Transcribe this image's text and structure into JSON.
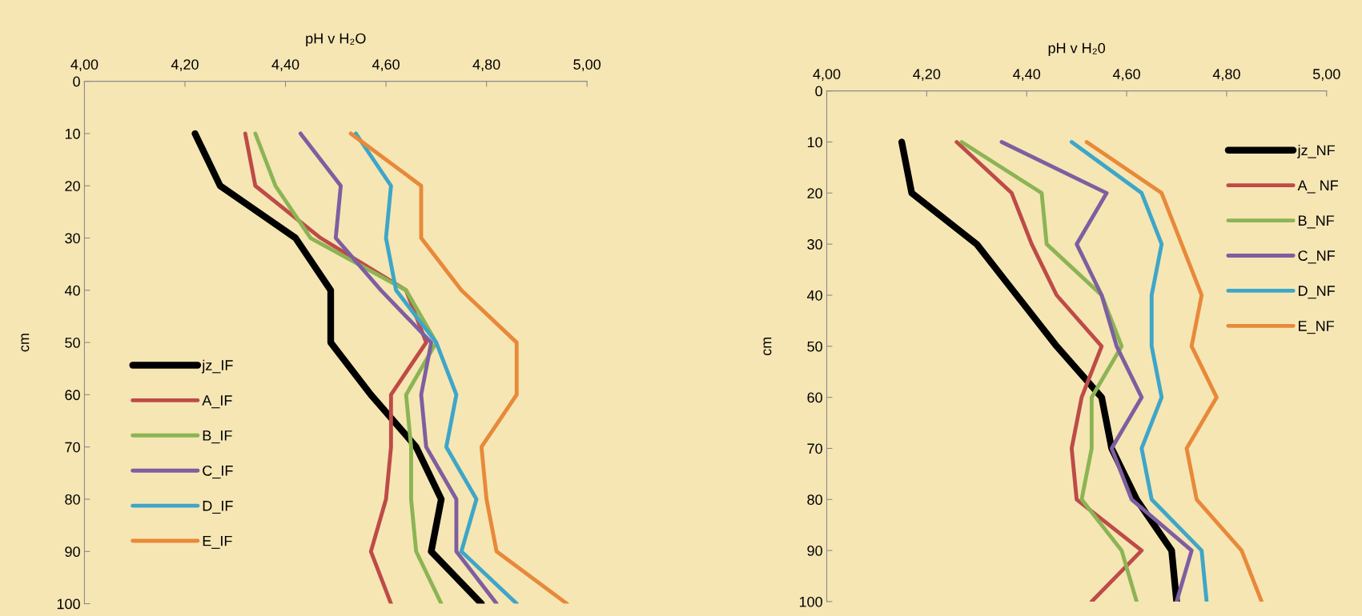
{
  "chart_data": [
    {
      "type": "line",
      "xlabel": "pH v H₂O",
      "ylabel": "cm",
      "xlim": [
        4.0,
        5.0
      ],
      "ylim": [
        100,
        0
      ],
      "xticks": [
        {
          "value": 4.0,
          "label": "4,00"
        },
        {
          "value": 4.2,
          "label": "4,20"
        },
        {
          "value": 4.4,
          "label": "4,40"
        },
        {
          "value": 4.6,
          "label": "4,60"
        },
        {
          "value": 4.8,
          "label": "4,80"
        },
        {
          "value": 5.0,
          "label": "5,00"
        }
      ],
      "yticks": [
        0,
        10,
        20,
        30,
        40,
        50,
        60,
        70,
        80,
        90,
        100
      ],
      "grid": false,
      "legend": "bottom left",
      "marker": "none",
      "line_style": "solid",
      "series": [
        {
          "name": "jz_IF",
          "color": "#000000",
          "x": [
            4.22,
            4.27,
            4.42,
            4.49,
            4.49,
            4.57,
            4.66,
            4.71,
            4.69,
            4.79
          ],
          "values": [
            10,
            20,
            30,
            40,
            50,
            60,
            70,
            80,
            90,
            100
          ]
        },
        {
          "name": "A_IF",
          "color": "#be4b48",
          "x": [
            4.32,
            4.34,
            4.47,
            4.64,
            4.68,
            4.61,
            4.61,
            4.6,
            4.57,
            4.61
          ],
          "values": [
            10,
            20,
            30,
            40,
            50,
            60,
            70,
            80,
            90,
            100
          ]
        },
        {
          "name": "B_IF",
          "color": "#8cb454",
          "x": [
            4.34,
            4.38,
            4.45,
            4.64,
            4.7,
            4.64,
            4.65,
            4.65,
            4.66,
            4.71
          ],
          "values": [
            10,
            20,
            30,
            40,
            50,
            60,
            70,
            80,
            90,
            100
          ]
        },
        {
          "name": "C_IF",
          "color": "#7d5fa0",
          "x": [
            4.43,
            4.51,
            4.5,
            4.59,
            4.69,
            4.67,
            4.68,
            4.74,
            4.74,
            4.82
          ],
          "values": [
            10,
            20,
            30,
            40,
            50,
            60,
            70,
            80,
            90,
            100
          ]
        },
        {
          "name": "D_IF",
          "color": "#3ea6c8",
          "x": [
            4.54,
            4.61,
            4.6,
            4.62,
            4.7,
            4.74,
            4.72,
            4.78,
            4.75,
            4.86
          ],
          "values": [
            10,
            20,
            30,
            40,
            50,
            60,
            70,
            80,
            90,
            100
          ]
        },
        {
          "name": "E_IF",
          "color": "#e8893a",
          "x": [
            4.53,
            4.67,
            4.67,
            4.75,
            4.86,
            4.86,
            4.79,
            4.8,
            4.82,
            4.96
          ],
          "values": [
            10,
            20,
            30,
            40,
            50,
            60,
            70,
            80,
            90,
            100
          ]
        }
      ]
    },
    {
      "type": "line",
      "xlabel": "pH v H₂0",
      "ylabel": "cm",
      "xlim": [
        4.0,
        5.0
      ],
      "ylim": [
        100,
        0
      ],
      "xticks": [
        {
          "value": 4.0,
          "label": "4,00"
        },
        {
          "value": 4.2,
          "label": "4,20"
        },
        {
          "value": 4.4,
          "label": "4,40"
        },
        {
          "value": 4.6,
          "label": "4,60"
        },
        {
          "value": 4.8,
          "label": "4,80"
        },
        {
          "value": 5.0,
          "label": "5,00"
        }
      ],
      "yticks": [
        0,
        10,
        20,
        30,
        40,
        50,
        60,
        70,
        80,
        90,
        100
      ],
      "grid": false,
      "legend": "top right",
      "marker": "none",
      "line_style": "solid",
      "series": [
        {
          "name": "jz_NF",
          "color": "#000000",
          "x": [
            4.15,
            4.17,
            4.3,
            4.38,
            4.46,
            4.55,
            4.57,
            4.62,
            4.69,
            4.7
          ],
          "values": [
            10,
            20,
            30,
            40,
            50,
            60,
            70,
            80,
            90,
            100
          ]
        },
        {
          "name": "A_ NF",
          "color": "#be4b48",
          "x": [
            4.26,
            4.37,
            4.41,
            4.46,
            4.55,
            4.51,
            4.49,
            4.5,
            4.63,
            4.53
          ],
          "values": [
            10,
            20,
            30,
            40,
            50,
            60,
            70,
            80,
            90,
            100
          ]
        },
        {
          "name": "B_NF",
          "color": "#8cb454",
          "x": [
            4.27,
            4.43,
            4.44,
            4.55,
            4.59,
            4.53,
            4.53,
            4.51,
            4.59,
            4.62
          ],
          "values": [
            10,
            20,
            30,
            40,
            50,
            60,
            70,
            80,
            90,
            100
          ]
        },
        {
          "name": "C_NF",
          "color": "#7d5fa0",
          "x": [
            4.35,
            4.56,
            4.5,
            4.55,
            4.58,
            4.63,
            4.57,
            4.61,
            4.73,
            4.7
          ],
          "values": [
            10,
            20,
            30,
            40,
            50,
            60,
            70,
            80,
            90,
            100
          ]
        },
        {
          "name": "D_NF",
          "color": "#3ea6c8",
          "x": [
            4.49,
            4.63,
            4.67,
            4.65,
            4.65,
            4.67,
            4.63,
            4.65,
            4.75,
            4.76
          ],
          "values": [
            10,
            20,
            30,
            40,
            50,
            60,
            70,
            80,
            90,
            100
          ]
        },
        {
          "name": "E_NF",
          "color": "#e8893a",
          "x": [
            4.52,
            4.67,
            4.71,
            4.75,
            4.73,
            4.78,
            4.72,
            4.74,
            4.83,
            4.87
          ],
          "values": [
            10,
            20,
            30,
            40,
            50,
            60,
            70,
            80,
            90,
            100
          ]
        }
      ]
    }
  ]
}
